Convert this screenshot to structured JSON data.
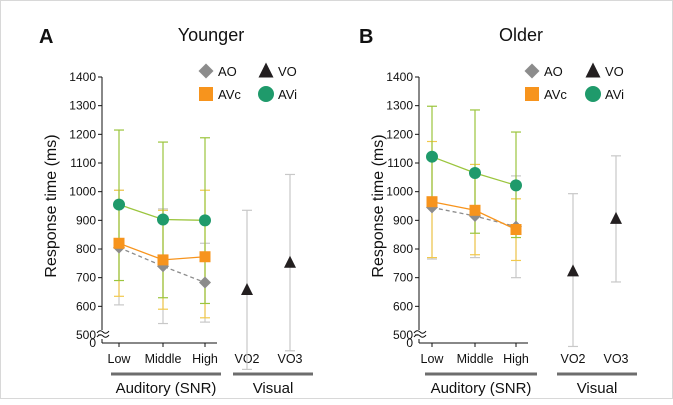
{
  "chart_data": [
    {
      "type": "line",
      "panel_label": "A",
      "title": "Younger",
      "ylabel": "Response time (ms)",
      "ylim": [
        500,
        1400
      ],
      "yticks": [
        500,
        600,
        700,
        800,
        900,
        1000,
        1100,
        1200,
        1300,
        1400
      ],
      "y_origin_label": "0",
      "categories": [
        "Low",
        "Middle",
        "High",
        "VO2",
        "VO3"
      ],
      "groups": [
        {
          "label": "Auditory (SNR)",
          "categories": [
            "Low",
            "Middle",
            "High"
          ]
        },
        {
          "label": "Visual",
          "categories": [
            "VO2",
            "VO3"
          ]
        }
      ],
      "series": [
        {
          "name": "AO",
          "marker": "diamond",
          "color": "#8c8c8c",
          "line": "dashed",
          "x": [
            "Low",
            "Middle",
            "High"
          ],
          "values": [
            805,
            740,
            683
          ],
          "err_low": [
            605,
            540,
            545
          ],
          "err_high": [
            1005,
            940,
            820
          ]
        },
        {
          "name": "AVc",
          "marker": "square",
          "color": "#f7941d",
          "line": "solid",
          "x": [
            "Low",
            "Middle",
            "High"
          ],
          "values": [
            820,
            762,
            773
          ],
          "err_low": [
            635,
            590,
            560
          ],
          "err_high": [
            1005,
            935,
            1005
          ]
        },
        {
          "name": "AVi",
          "marker": "circle",
          "color": "#1f9a6b",
          "line_color": "#9bc53d",
          "line": "solid",
          "x": [
            "Low",
            "Middle",
            "High"
          ],
          "values": [
            955,
            903,
            900
          ],
          "err_low": [
            690,
            630,
            610
          ],
          "err_high": [
            1215,
            1173,
            1188
          ]
        },
        {
          "name": "VO",
          "marker": "triangle",
          "color": "#231f20",
          "line": "none",
          "x": [
            "VO2",
            "VO3"
          ],
          "values": [
            657,
            752
          ],
          "err_low": [
            380,
            445
          ],
          "err_high": [
            935,
            1060
          ]
        }
      ]
    },
    {
      "type": "line",
      "panel_label": "B",
      "title": "Older",
      "ylabel": "Response time (ms)",
      "ylim": [
        500,
        1400
      ],
      "yticks": [
        500,
        600,
        700,
        800,
        900,
        1000,
        1100,
        1200,
        1300,
        1400
      ],
      "y_origin_label": "0",
      "categories": [
        "Low",
        "Middle",
        "High",
        "VO2",
        "VO3"
      ],
      "groups": [
        {
          "label": "Auditory (SNR)",
          "categories": [
            "Low",
            "Middle",
            "High"
          ]
        },
        {
          "label": "Visual",
          "categories": [
            "VO2",
            "VO3"
          ]
        }
      ],
      "series": [
        {
          "name": "AO",
          "marker": "diamond",
          "color": "#8c8c8c",
          "line": "dashed",
          "x": [
            "Low",
            "Middle",
            "High"
          ],
          "values": [
            945,
            915,
            878
          ],
          "err_low": [
            765,
            770,
            700
          ],
          "err_high": [
            1125,
            1058,
            1055
          ]
        },
        {
          "name": "AVc",
          "marker": "square",
          "color": "#f7941d",
          "line": "solid",
          "x": [
            "Low",
            "Middle",
            "High"
          ],
          "values": [
            965,
            935,
            868
          ],
          "err_low": [
            770,
            780,
            760
          ],
          "err_high": [
            1175,
            1095,
            975
          ]
        },
        {
          "name": "AVi",
          "marker": "circle",
          "color": "#1f9a6b",
          "line_color": "#9bc53d",
          "line": "solid",
          "x": [
            "Low",
            "Middle",
            "High"
          ],
          "values": [
            1122,
            1065,
            1022
          ],
          "err_low": [
            945,
            855,
            840
          ],
          "err_high": [
            1298,
            1285,
            1208
          ]
        },
        {
          "name": "VO",
          "marker": "triangle",
          "color": "#231f20",
          "line": "none",
          "x": [
            "VO2",
            "VO3"
          ],
          "values": [
            722,
            905
          ],
          "err_low": [
            460,
            685
          ],
          "err_high": [
            993,
            1125
          ]
        }
      ]
    }
  ],
  "legend_placement": "top-right",
  "errorbar_colors": {
    "AO": "#c8c8c8",
    "AVc": "#f2c94c",
    "AVi": "#9bc53d",
    "VO": "#c8c8c8"
  },
  "group_bar_color": "#6d6d6d"
}
